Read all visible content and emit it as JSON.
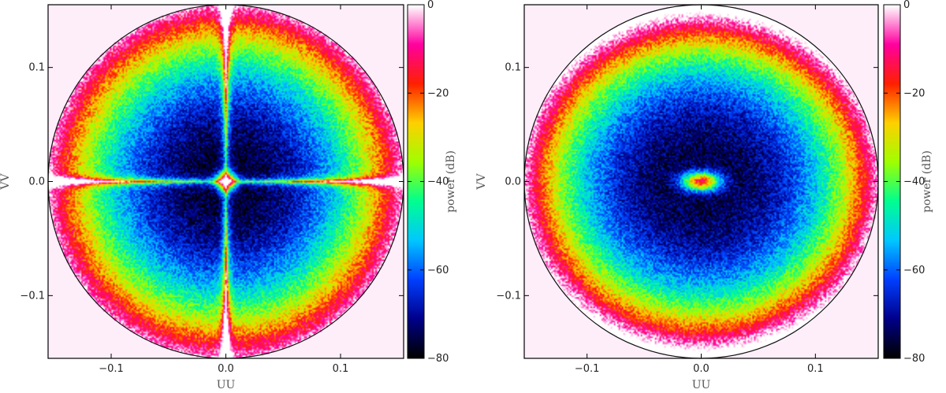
{
  "chart_data": [
    {
      "type": "heatmap",
      "title": "",
      "xlabel": "UU",
      "ylabel": "VV",
      "xlim": [
        -0.155,
        0.155
      ],
      "ylim": [
        -0.155,
        0.155
      ],
      "x_ticks": [
        -0.1,
        0.0,
        0.1
      ],
      "x_tick_labels": [
        "−0.1",
        "0.0",
        "0.1"
      ],
      "y_ticks": [
        -0.1,
        0.0,
        0.1
      ],
      "y_tick_labels": [
        "−0.1",
        "0.0",
        "0.1"
      ],
      "pattern": "four-lobe",
      "aperture_radius": 0.155,
      "colorbar": {
        "label": "power (dB)",
        "min": -80,
        "max": 0,
        "ticks": [
          0,
          -20,
          -40,
          -60,
          -80
        ],
        "tick_labels": [
          "0",
          "−20",
          "−40",
          "−60",
          "−80"
        ]
      }
    },
    {
      "type": "heatmap",
      "title": "",
      "xlabel": "UU",
      "ylabel": "VV",
      "xlim": [
        -0.155,
        0.155
      ],
      "ylim": [
        -0.155,
        0.155
      ],
      "x_ticks": [
        -0.1,
        0.0,
        0.1
      ],
      "x_tick_labels": [
        "−0.1",
        "0.0",
        "0.1"
      ],
      "y_ticks": [
        -0.1,
        0.0,
        0.1
      ],
      "y_tick_labels": [
        "−0.1",
        "0.0",
        "0.1"
      ],
      "pattern": "ring",
      "aperture_radius": 0.155,
      "colorbar": {
        "label": "power (dB)",
        "min": -80,
        "max": 0,
        "ticks": [
          0,
          -20,
          -40,
          -60,
          -80
        ],
        "tick_labels": [
          "0",
          "−20",
          "−40",
          "−60",
          "−80"
        ]
      }
    }
  ],
  "colors": {
    "background_fill": "#fdeefa",
    "colormap_stops": [
      "#000000",
      "#00008b",
      "#0040ff",
      "#00c8ff",
      "#00ff90",
      "#a0ff00",
      "#ffd000",
      "#ff2000",
      "#ff00a0",
      "#ffffff"
    ]
  }
}
